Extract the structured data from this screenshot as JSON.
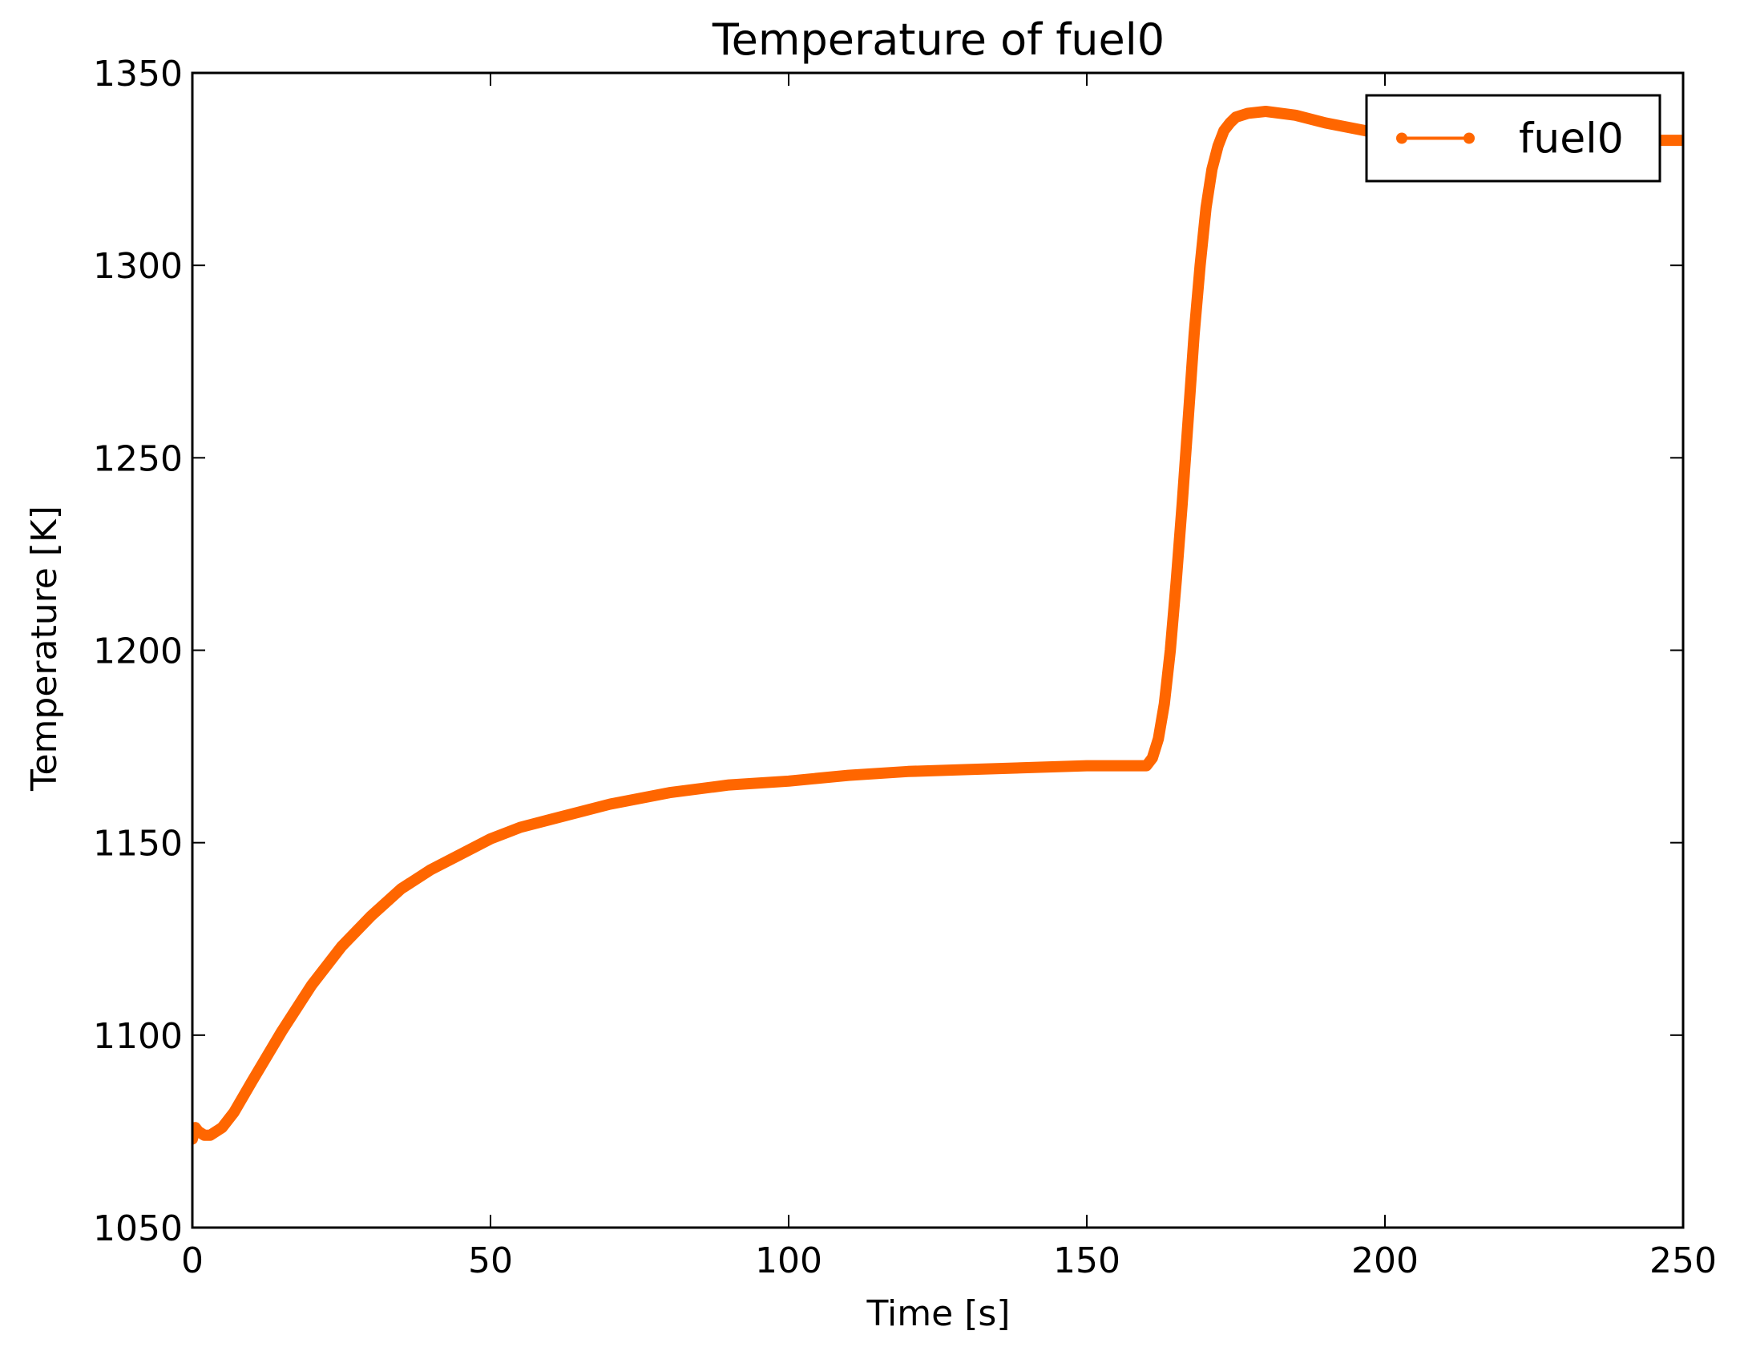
{
  "chart_data": {
    "type": "line",
    "title": "Temperature of fuel0",
    "xlabel": "Time [s]",
    "ylabel": "Temperature [K]",
    "xlim": [
      0,
      250
    ],
    "ylim": [
      1050,
      1350
    ],
    "xticks": [
      0,
      50,
      100,
      150,
      200,
      250
    ],
    "yticks": [
      1050,
      1100,
      1150,
      1200,
      1250,
      1300,
      1350
    ],
    "grid": false,
    "legend_position": "top-right",
    "series": [
      {
        "name": "fuel0",
        "color": "#ff6600",
        "x": [
          0,
          0.5,
          1,
          2,
          3,
          5,
          7,
          10,
          15,
          20,
          25,
          30,
          35,
          40,
          45,
          50,
          55,
          60,
          70,
          80,
          90,
          100,
          110,
          120,
          130,
          140,
          150,
          160,
          161,
          162,
          163,
          164,
          165,
          166,
          167,
          168,
          169,
          170,
          171,
          172,
          173,
          174,
          175,
          177,
          180,
          185,
          190,
          200,
          210,
          220,
          230,
          240,
          250
        ],
        "y": [
          1073,
          1076,
          1075,
          1074,
          1074,
          1076,
          1080,
          1088,
          1101,
          1113,
          1123,
          1131,
          1138,
          1143,
          1147,
          1151,
          1154,
          1156,
          1160,
          1163,
          1165,
          1166,
          1167.5,
          1168.5,
          1169,
          1169.5,
          1170,
          1170,
          1172,
          1177,
          1186,
          1200,
          1218,
          1238,
          1260,
          1282,
          1300,
          1315,
          1325,
          1331,
          1335,
          1337,
          1338.5,
          1339.5,
          1340,
          1339,
          1337,
          1334,
          1333,
          1332.5,
          1332.5,
          1332.5,
          1332.5
        ]
      }
    ]
  }
}
